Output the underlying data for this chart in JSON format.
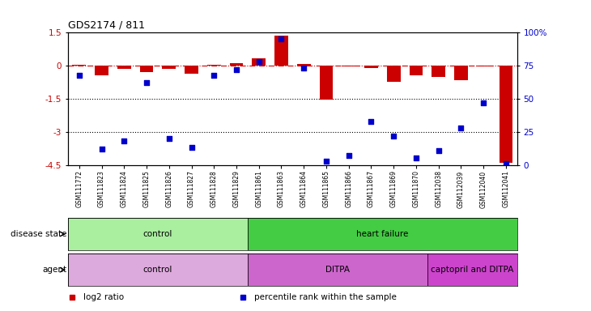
{
  "title": "GDS2174 / 811",
  "samples": [
    "GSM111772",
    "GSM111823",
    "GSM111824",
    "GSM111825",
    "GSM111826",
    "GSM111827",
    "GSM111828",
    "GSM111829",
    "GSM111861",
    "GSM111863",
    "GSM111864",
    "GSM111865",
    "GSM111866",
    "GSM111867",
    "GSM111869",
    "GSM111870",
    "GSM112038",
    "GSM112039",
    "GSM112040",
    "GSM112041"
  ],
  "log2_ratio": [
    0.05,
    -0.45,
    -0.15,
    -0.28,
    -0.15,
    -0.38,
    0.05,
    0.12,
    0.35,
    1.35,
    0.07,
    -1.55,
    -0.05,
    -0.1,
    -0.72,
    -0.45,
    -0.5,
    -0.65,
    -0.05,
    -4.4
  ],
  "percentile": [
    68,
    12,
    18,
    62,
    20,
    13,
    68,
    72,
    78,
    95,
    73,
    3,
    7,
    33,
    22,
    5,
    11,
    28,
    47,
    1
  ],
  "ylim_left": [
    -4.5,
    1.5
  ],
  "ylim_right": [
    0,
    100
  ],
  "yticks_left": [
    1.5,
    0,
    -1.5,
    -3,
    -4.5
  ],
  "yticks_right": [
    100,
    75,
    50,
    25,
    0
  ],
  "ytick_labels_left": [
    "1.5",
    "0",
    "-1.5",
    "-3",
    "-4.5"
  ],
  "ytick_labels_right": [
    "100%",
    "75",
    "50",
    "25",
    "0"
  ],
  "dotted_lines": [
    -1.5,
    -3
  ],
  "bar_color": "#cc0000",
  "dot_color": "#0000cc",
  "bar_width": 0.6,
  "dot_size": 22,
  "disease_state": [
    {
      "label": "control",
      "start": 0,
      "end": 8,
      "color": "#aaeea0"
    },
    {
      "label": "heart failure",
      "start": 8,
      "end": 20,
      "color": "#44cc44"
    }
  ],
  "agent": [
    {
      "label": "control",
      "start": 0,
      "end": 8,
      "color": "#ddaadd"
    },
    {
      "label": "DITPA",
      "start": 8,
      "end": 16,
      "color": "#cc66cc"
    },
    {
      "label": "captopril and DITPA",
      "start": 16,
      "end": 20,
      "color": "#cc44cc"
    }
  ],
  "legend_items": [
    {
      "label": "log2 ratio",
      "color": "#cc0000",
      "marker": "s"
    },
    {
      "label": "percentile rank within the sample",
      "color": "#0000cc",
      "marker": "s"
    }
  ],
  "background_color": "#ffffff",
  "tick_fontsize": 7.5,
  "sample_fontsize": 5.5,
  "annotation_fontsize": 7.5
}
